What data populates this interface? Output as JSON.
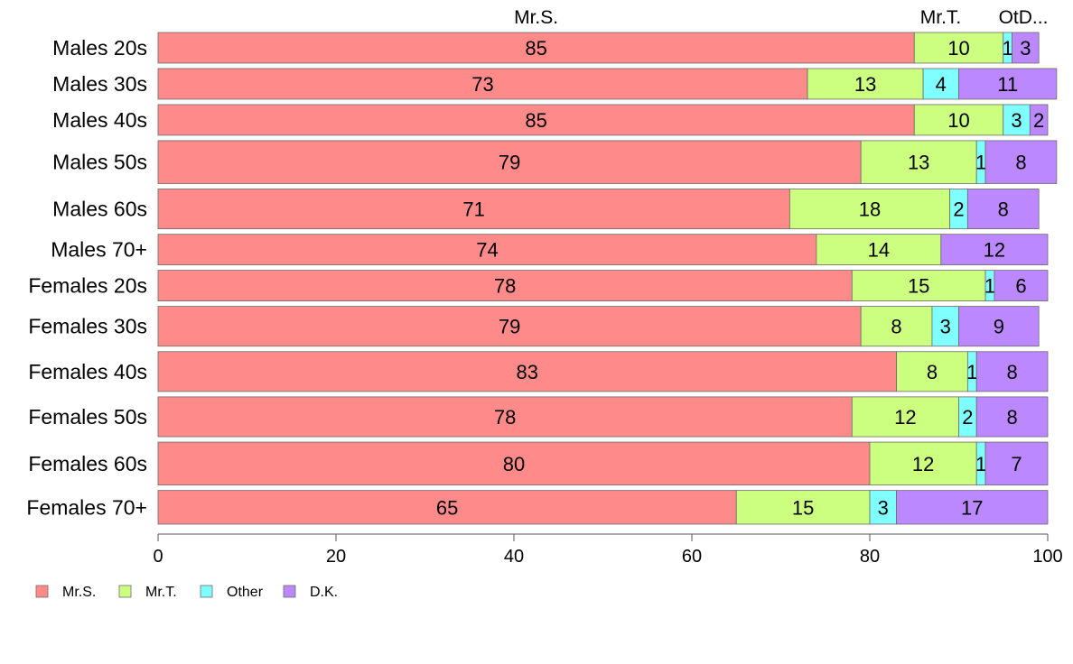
{
  "chart_data": {
    "type": "bar",
    "orientation": "horizontal",
    "stacked": true,
    "categories": [
      "Males 20s",
      "Males 30s",
      "Males 40s",
      "Males 50s",
      "Males 60s",
      "Males 70+",
      "Females 20s",
      "Females 30s",
      "Females 40s",
      "Females 50s",
      "Females 60s",
      "Females 70+"
    ],
    "series": [
      {
        "name": "Mr.S.",
        "color": "#FF8A8A",
        "values": [
          85,
          73,
          85,
          79,
          71,
          74,
          78,
          79,
          83,
          78,
          80,
          65
        ]
      },
      {
        "name": "Mr.T.",
        "color": "#CCFF80",
        "values": [
          10,
          13,
          10,
          13,
          18,
          14,
          15,
          8,
          8,
          12,
          12,
          15
        ]
      },
      {
        "name": "Other",
        "color": "#80FFFF",
        "values": [
          1,
          4,
          3,
          1,
          2,
          0,
          1,
          3,
          1,
          2,
          1,
          3
        ]
      },
      {
        "name": "D.K.",
        "color": "#BB88FF",
        "values": [
          3,
          11,
          2,
          8,
          8,
          12,
          6,
          9,
          8,
          8,
          7,
          17
        ]
      }
    ],
    "bar_weights": [
      1,
      1,
      1,
      1.4,
      1.3,
      1,
      1,
      1.3,
      1.3,
      1.3,
      1.4,
      1.1
    ],
    "top_labels": [
      "Mr.S.",
      "Mr.T.",
      "OtD..."
    ],
    "xlim": [
      0,
      100
    ],
    "xticks": [
      0,
      20,
      40,
      60,
      80,
      100
    ],
    "title": "",
    "xlabel": "",
    "ylabel": "",
    "grid": false,
    "legend": {
      "position": "bottom-left",
      "entries": [
        "Mr.S.",
        "Mr.T.",
        "Other",
        "D.K."
      ]
    }
  }
}
